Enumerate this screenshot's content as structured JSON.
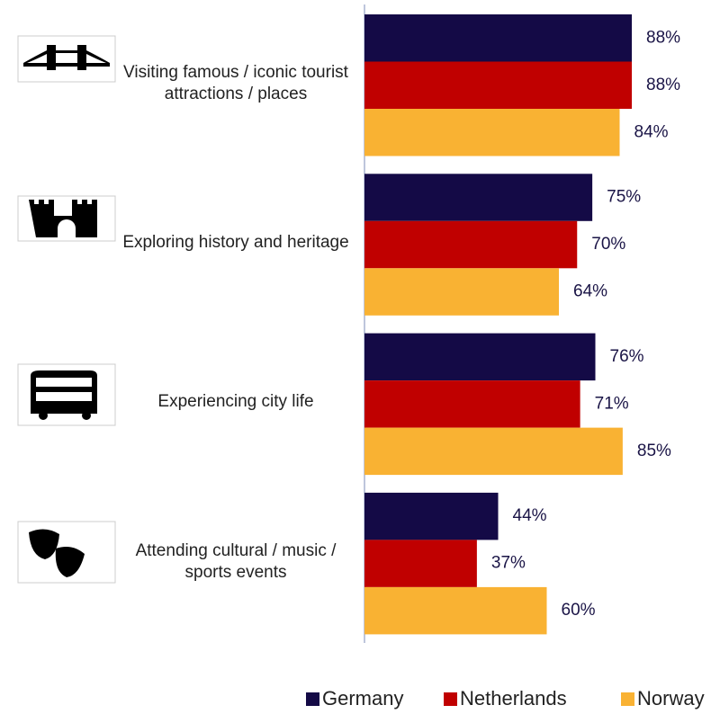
{
  "chart_data": {
    "type": "bar",
    "orientation": "horizontal",
    "categories": [
      "Visiting famous / iconic tourist attractions / places",
      "Exploring history and heritage",
      "Experiencing city life",
      "Attending cultural / music / sports events"
    ],
    "series": [
      {
        "name": "Germany",
        "color": "#140a46",
        "values": [
          88,
          75,
          76,
          44
        ],
        "value_labels": [
          "88%",
          "75%",
          "76%",
          "44%"
        ]
      },
      {
        "name": "Netherlands",
        "color": "#c00000",
        "values": [
          88,
          70,
          71,
          37
        ],
        "value_labels": [
          "88%",
          "70%",
          "71%",
          "37%"
        ]
      },
      {
        "name": "Norway",
        "color": "#f9b233",
        "values": [
          84,
          64,
          85,
          60
        ],
        "value_labels": [
          "84%",
          "64%",
          "85%",
          "60%"
        ]
      }
    ],
    "xlim": [
      0,
      100
    ],
    "legend": "bottom"
  }
}
